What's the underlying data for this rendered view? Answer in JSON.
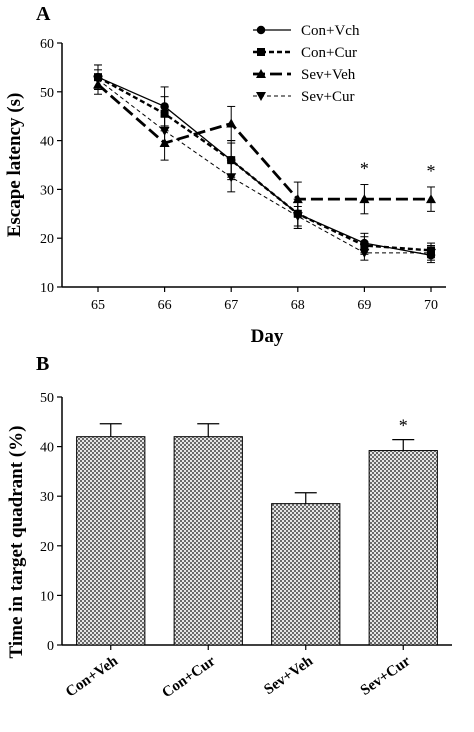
{
  "chart_data": [
    {
      "panel": "A",
      "type": "line",
      "xlabel": "Day",
      "ylabel": "Escape latency (s)",
      "x": [
        65,
        66,
        67,
        68,
        69,
        70
      ],
      "ylim": [
        10,
        60
      ],
      "yticks": [
        10,
        20,
        30,
        40,
        50,
        60
      ],
      "legend_position": "top-right",
      "series": [
        {
          "name": "Con+Vch",
          "marker": "circle",
          "line": "solid",
          "values": [
            53,
            47,
            36,
            25,
            19,
            16.5
          ],
          "errors": [
            2.5,
            4,
            4,
            3,
            2,
            1.5
          ]
        },
        {
          "name": "Con+Cur",
          "marker": "square",
          "line": "short-dash",
          "values": [
            53,
            45.5,
            36,
            25,
            18.5,
            17.5
          ],
          "errors": [
            2.5,
            3.5,
            3.5,
            3,
            1.8,
            1.5
          ]
        },
        {
          "name": "Sev+Veh",
          "marker": "triangle-up",
          "line": "long-dash",
          "values": [
            51.5,
            39.5,
            43.5,
            28,
            28,
            28
          ],
          "errors": [
            2,
            3.5,
            3.5,
            3.5,
            3,
            2.5
          ]
        },
        {
          "name": "Sev+Cur",
          "marker": "triangle-down",
          "line": "thin-dash",
          "values": [
            52.5,
            42,
            32.5,
            24.5,
            17,
            17
          ],
          "errors": [
            2,
            3,
            3,
            2,
            1.5,
            1.5
          ]
        }
      ],
      "annotations": [
        {
          "x": 69,
          "text": "*"
        },
        {
          "x": 70,
          "text": "*"
        }
      ]
    },
    {
      "panel": "B",
      "type": "bar",
      "ylabel": "Time  in target quadrant (%)",
      "categories": [
        "Con+Veh",
        "Con+Cur",
        "Sev+Veh",
        "Sev+Cur"
      ],
      "values": [
        42,
        42,
        28.5,
        39.2
      ],
      "errors": [
        2.6,
        2.6,
        2.2,
        2.2
      ],
      "ylim": [
        0,
        50
      ],
      "yticks": [
        0,
        10,
        20,
        30,
        40,
        50
      ],
      "annotations": [
        {
          "category": "Sev+Cur",
          "text": "*"
        }
      ]
    }
  ]
}
